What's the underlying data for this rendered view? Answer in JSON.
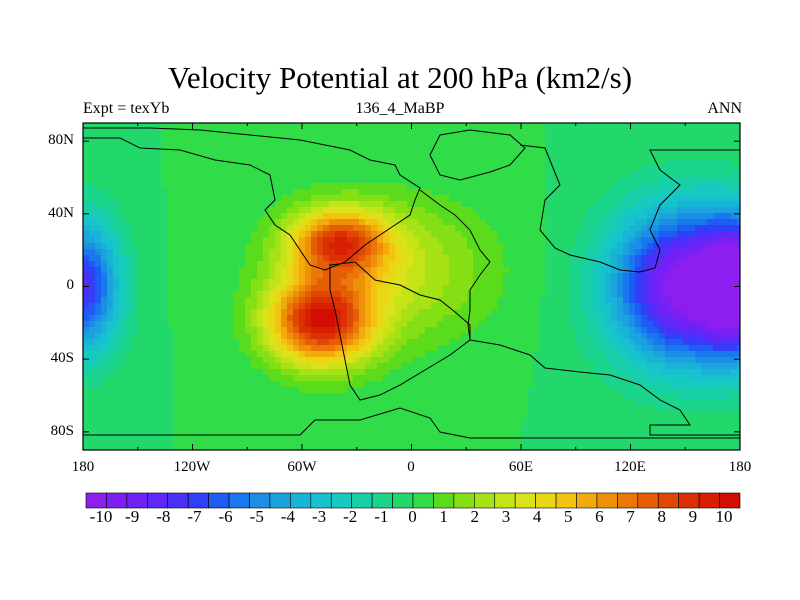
{
  "title": "Velocity Potential at 200 hPa (km2/s)",
  "subtitle_left": "Expt = texYb",
  "subtitle_center": "136_4_MaBP",
  "subtitle_right": "ANN",
  "y_ticks": [
    "80N",
    "40N",
    "0",
    "40S",
    "80S"
  ],
  "x_ticks": [
    "180",
    "120W",
    "60W",
    "0",
    "60E",
    "120E",
    "180"
  ],
  "colorbar": {
    "labels": [
      "-10",
      "-9",
      "-8",
      "-7",
      "-6",
      "-5",
      "-4",
      "-3",
      "-2",
      "-1",
      "0",
      "1",
      "2",
      "3",
      "4",
      "5",
      "6",
      "7",
      "8",
      "9",
      "10"
    ],
    "colors": [
      "#8c1ef0",
      "#7d1ff2",
      "#6f22f5",
      "#5f27f8",
      "#4a30f8",
      "#2f40f8",
      "#1e5cf5",
      "#1a78ee",
      "#1b8fe6",
      "#1aa3dd",
      "#18b4d6",
      "#17c1cd",
      "#17cac0",
      "#17d0a8",
      "#1ad58b",
      "#22d86b",
      "#30dc47",
      "#5adc1c",
      "#84df14",
      "#a6e216",
      "#c4e418",
      "#dbe21a",
      "#e9d615",
      "#f2c310",
      "#f2aa0c",
      "#ef9009",
      "#ea7707",
      "#e55e06",
      "#e04705",
      "#dc3004",
      "#d81e03",
      "#d20e02"
    ]
  },
  "chart_data": {
    "type": "heatmap",
    "title": "Velocity Potential at 200 hPa (km2/s)",
    "subtitle": "136_4_MaBP",
    "annotations": [
      "Expt = texYb",
      "ANN"
    ],
    "xlim": [
      -180,
      180
    ],
    "ylim": [
      -90,
      90
    ],
    "x_ticks": [
      "180",
      "120W",
      "60W",
      "0",
      "60E",
      "120E",
      "180"
    ],
    "y_ticks": [
      "80N",
      "40N",
      "0",
      "40S",
      "80S"
    ],
    "value_range": [
      -10.5,
      10.5
    ],
    "levels": [
      -10,
      -9,
      -8,
      -7,
      -6,
      -5,
      -4,
      -3,
      -2,
      -1,
      0,
      1,
      2,
      3,
      4,
      5,
      6,
      7,
      8,
      9,
      10
    ],
    "features": [
      {
        "type": "max",
        "lon": -50,
        "lat": -20,
        "value": 10
      },
      {
        "type": "max",
        "lon": -40,
        "lat": 25,
        "value": 9.5
      },
      {
        "type": "min",
        "lon": 150,
        "lat": 0,
        "value": -10
      },
      {
        "type": "min",
        "lon": -180,
        "lat": 0,
        "value": -9
      }
    ]
  }
}
